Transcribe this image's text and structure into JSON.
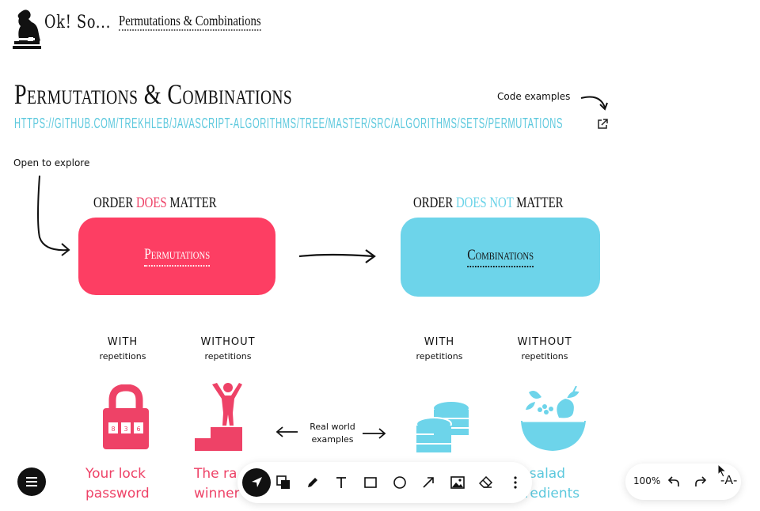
{
  "header": {
    "app_title": "Ok! So...",
    "breadcrumb": "Permutations & Combinations"
  },
  "main": {
    "title": "Permutations & Combinations",
    "repo_link": "https://github.com/trekhleb/javascript-algorithms/tree/master/src/algorithms/sets/permutations",
    "code_note": "Code examples",
    "explore_note": "Open to explore"
  },
  "left": {
    "order_prefix": "Order ",
    "order_highlight": "DOES",
    "order_suffix": " Matter",
    "card_label": "Permutations",
    "with_label": "WITH",
    "with_sub": "repetitions",
    "without_label": "WITHOUT",
    "without_sub": "repetitions",
    "example1": "Your lock",
    "example1b": "password",
    "example2": "The ra",
    "example2b": "winner"
  },
  "right": {
    "order_prefix": "Order ",
    "order_highlight": "DOES NOT",
    "order_suffix": " Matter",
    "card_label": "Combinations",
    "with_label": "WITH",
    "with_sub": "repetitions",
    "without_label": "WITHOUT",
    "without_sub": "repetitions",
    "example3": "it salad",
    "example3b": "gredients"
  },
  "real_world": {
    "line1": "Real world",
    "line2": "examples"
  },
  "lock_digits": [
    "8",
    "3",
    "6"
  ],
  "toolbar": {
    "tools": [
      "select-icon",
      "shapes-icon",
      "pencil-icon",
      "text-icon",
      "rectangle-icon",
      "circle-icon",
      "arrow-icon",
      "image-icon",
      "eraser-icon",
      "more-icon"
    ]
  },
  "zoom": {
    "value": "100%",
    "font_button": "-A-"
  },
  "colors": {
    "red": "#fd3e63",
    "blue": "#6dd4ea",
    "link": "#5bc8dd"
  }
}
